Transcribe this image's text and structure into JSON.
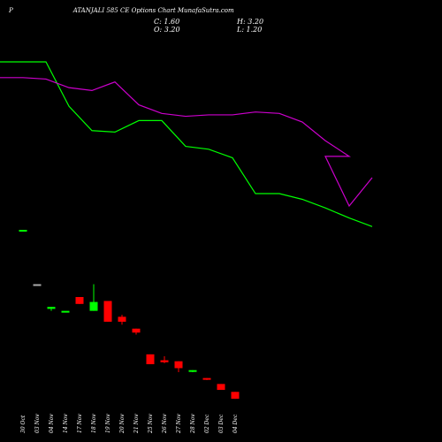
{
  "header": {
    "prefix": "P",
    "title": "ATANJALI 585 CE Options Chart MunafaSutra.com"
  },
  "ohlc": {
    "close": "C: 1.60",
    "open": "O: 3.20",
    "high": "H: 3.20",
    "low": "L: 1.20"
  },
  "chart_data": {
    "type": "candlestick",
    "title": "ATANJALI 585 CE Options Chart MunafaSutra.com",
    "xlabel": "",
    "ylabel": "",
    "categories": [
      "30 Oct",
      "03 Nov",
      "04 Nov",
      "14 Nov",
      "17 Nov",
      "18 Nov",
      "19 Nov",
      "20 Nov",
      "21 Nov",
      "25 Nov",
      "26 Nov",
      "27 Nov",
      "28 Nov",
      "02 Dec",
      "03 Dec",
      "04 Dec"
    ],
    "candles": [
      {
        "x": "30 Oct",
        "open": 21.0,
        "high": 21.0,
        "low": 21.0,
        "close": 21.0,
        "color": "green"
      },
      {
        "x": "03 Nov",
        "open": 15.5,
        "high": 15.5,
        "low": 15.5,
        "close": 15.5,
        "color": "gray"
      },
      {
        "x": "04 Nov",
        "open": 13.0,
        "high": 13.2,
        "low": 12.8,
        "close": 13.2,
        "color": "green"
      },
      {
        "x": "14 Nov",
        "open": 12.8,
        "high": 12.8,
        "low": 12.8,
        "close": 12.8,
        "color": "green"
      },
      {
        "x": "17 Nov",
        "open": 14.2,
        "high": 14.2,
        "low": 13.5,
        "close": 13.5,
        "color": "red"
      },
      {
        "x": "18 Nov",
        "open": 12.8,
        "high": 15.5,
        "low": 12.8,
        "close": 13.7,
        "color": "green"
      },
      {
        "x": "19 Nov",
        "open": 13.8,
        "high": 13.8,
        "low": 11.7,
        "close": 11.7,
        "color": "red"
      },
      {
        "x": "20 Nov",
        "open": 12.2,
        "high": 12.4,
        "low": 11.4,
        "close": 11.7,
        "color": "red"
      },
      {
        "x": "21 Nov",
        "open": 11.0,
        "high": 11.0,
        "low": 10.4,
        "close": 10.6,
        "color": "red"
      },
      {
        "x": "25 Nov",
        "open": 8.4,
        "high": 8.4,
        "low": 7.4,
        "close": 7.4,
        "color": "red"
      },
      {
        "x": "26 Nov",
        "open": 7.8,
        "high": 8.2,
        "low": 7.5,
        "close": 7.6,
        "color": "red"
      },
      {
        "x": "27 Nov",
        "open": 7.7,
        "high": 7.7,
        "low": 6.6,
        "close": 7.0,
        "color": "red"
      },
      {
        "x": "28 Nov",
        "open": 6.8,
        "high": 6.8,
        "low": 6.6,
        "close": 6.8,
        "color": "green"
      },
      {
        "x": "02 Dec",
        "open": 6.0,
        "high": 6.0,
        "low": 5.8,
        "close": 5.9,
        "color": "red"
      },
      {
        "x": "03 Dec",
        "open": 5.4,
        "high": 5.4,
        "low": 4.8,
        "close": 4.8,
        "color": "red"
      },
      {
        "x": "04 Dec",
        "open": 4.6,
        "high": 4.6,
        "low": 3.9,
        "close": 3.9,
        "color": "red"
      }
    ],
    "overlays": [
      {
        "color": "#00ff00",
        "values": [
          23.4,
          23.4,
          20.3,
          18.6,
          18.5,
          19.3,
          19.3,
          17.5,
          17.3,
          16.7,
          14.2,
          14.2,
          13.8,
          13.2,
          12.5,
          11.9
        ]
      },
      {
        "color": "#cc00cc",
        "values": [
          22.3,
          22.2,
          21.6,
          21.4,
          22.0,
          20.4,
          19.8,
          19.6,
          19.7,
          19.7,
          19.9,
          19.8,
          19.2,
          17.9,
          16.8,
          15.4
        ]
      }
    ],
    "overlay_last_point": [
      {
        "x": "04 Dec (projected)",
        "green": 11.9,
        "magenta": 15.4
      }
    ],
    "grid": false,
    "legend": "none"
  }
}
